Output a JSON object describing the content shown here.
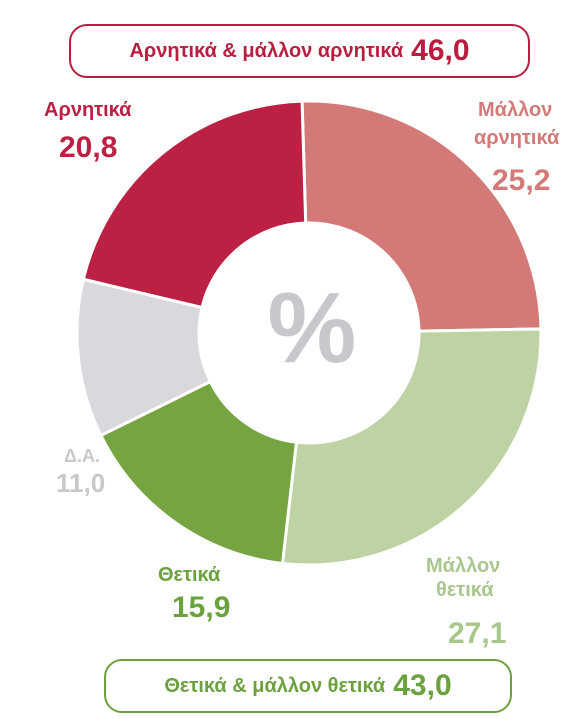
{
  "summary": {
    "negative_label": "Αρνητικά & μάλλον αρνητικά",
    "negative_value": "46,0",
    "positive_label": "Θετικά & μάλλον θετικά",
    "positive_value": "43,0"
  },
  "center_symbol": "%",
  "chart_data": {
    "type": "pie",
    "variant": "donut",
    "unit": "%",
    "slices": [
      {
        "label": "Αρνητικά",
        "value_text": "20,8",
        "value": 20.8,
        "color": "#bc2143"
      },
      {
        "label": "Μάλλον αρνητικά",
        "label_lines": [
          "Μάλλον",
          "αρνητικά"
        ],
        "value_text": "25,2",
        "value": 25.2,
        "color": "#d37a78"
      },
      {
        "label": "Μάλλον θετικά",
        "label_lines": [
          "Μάλλον",
          "θετικά"
        ],
        "value_text": "27,1",
        "value": 27.1,
        "color": "#bdd3a3"
      },
      {
        "label": "Θετικά",
        "value_text": "15,9",
        "value": 15.9,
        "color": "#76a441"
      },
      {
        "label": "Δ.Α.",
        "value_text": "11,0",
        "value": 11.0,
        "color": "#d9d9dd"
      }
    ],
    "label_colors": {
      "negative": "#bc2143",
      "mostly_negative": "#d37a78",
      "mostly_positive": "#a8c78c",
      "positive": "#6ca23d",
      "no_answer": "#c8c8cc"
    },
    "legend": "none"
  }
}
